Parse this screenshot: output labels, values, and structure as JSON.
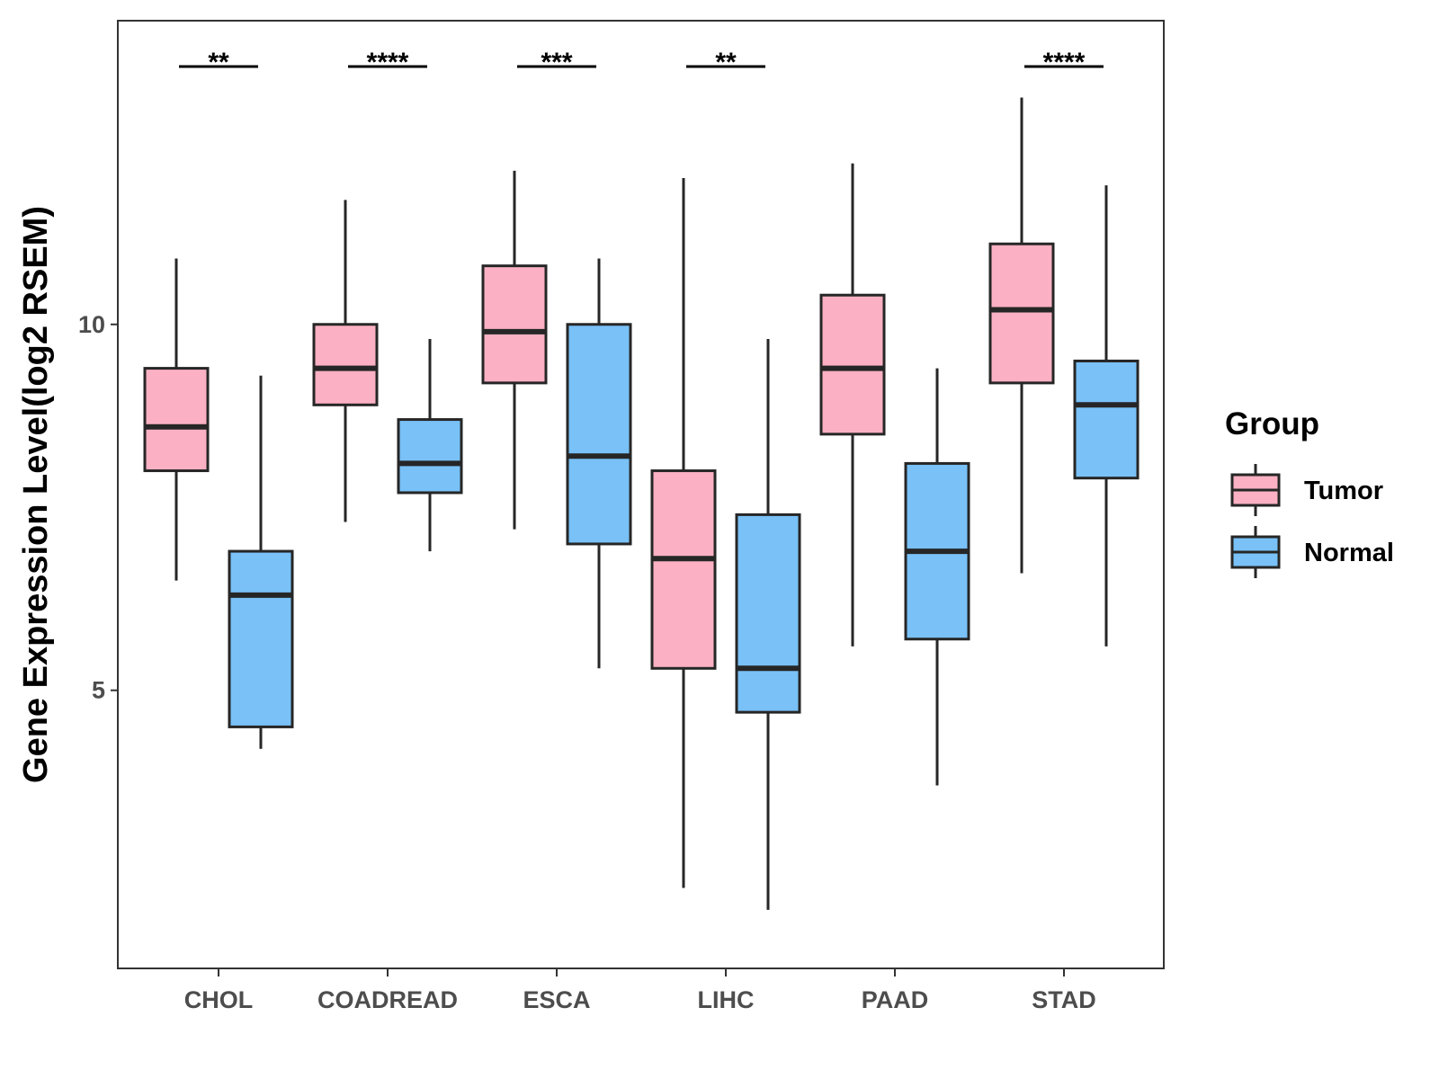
{
  "chart_data": {
    "type": "boxplot",
    "title": "",
    "xlabel": "",
    "ylabel": "Gene Expression Level(log2 RSEM)",
    "ylim": [
      1.2,
      14.15
    ],
    "yticks": [
      5,
      10
    ],
    "categories": [
      "CHOL",
      "COADREAD",
      "ESCA",
      "LIHC",
      "PAAD",
      "STAD"
    ],
    "legend": {
      "title": "Group",
      "position": "right",
      "entries": [
        {
          "name": "Tumor",
          "color": "#FBB1C3"
        },
        {
          "name": "Normal",
          "color": "#79C1F7"
        }
      ]
    },
    "series": [
      {
        "name": "Tumor",
        "color": "#FBB1C3",
        "boxes": [
          {
            "category": "CHOL",
            "min": 6.5,
            "q1": 8.0,
            "median": 8.6,
            "q3": 9.4,
            "max": 10.9
          },
          {
            "category": "COADREAD",
            "min": 7.3,
            "q1": 8.9,
            "median": 9.4,
            "q3": 10.0,
            "max": 11.7
          },
          {
            "category": "ESCA",
            "min": 7.2,
            "q1": 9.2,
            "median": 9.9,
            "q3": 10.8,
            "max": 12.1
          },
          {
            "category": "LIHC",
            "min": 2.3,
            "q1": 5.3,
            "median": 6.8,
            "q3": 8.0,
            "max": 12.0
          },
          {
            "category": "PAAD",
            "min": 5.6,
            "q1": 8.5,
            "median": 9.4,
            "q3": 10.4,
            "max": 12.2
          },
          {
            "category": "STAD",
            "min": 6.6,
            "q1": 9.2,
            "median": 10.2,
            "q3": 11.1,
            "max": 13.1
          }
        ]
      },
      {
        "name": "Normal",
        "color": "#79C1F7",
        "boxes": [
          {
            "category": "CHOL",
            "min": 4.2,
            "q1": 4.5,
            "median": 6.3,
            "q3": 6.9,
            "max": 9.3
          },
          {
            "category": "COADREAD",
            "min": 6.9,
            "q1": 7.7,
            "median": 8.1,
            "q3": 8.7,
            "max": 9.8
          },
          {
            "category": "ESCA",
            "min": 5.3,
            "q1": 7.0,
            "median": 8.2,
            "q3": 10.0,
            "max": 10.9
          },
          {
            "category": "LIHC",
            "min": 2.0,
            "q1": 4.7,
            "median": 5.3,
            "q3": 7.4,
            "max": 9.8
          },
          {
            "category": "PAAD",
            "min": 3.7,
            "q1": 5.7,
            "median": 6.9,
            "q3": 8.1,
            "max": 9.4
          },
          {
            "category": "STAD",
            "min": 5.6,
            "q1": 7.9,
            "median": 8.9,
            "q3": 9.5,
            "max": 11.9
          }
        ]
      }
    ],
    "significance": [
      {
        "category": "CHOL",
        "label": "**"
      },
      {
        "category": "COADREAD",
        "label": "****"
      },
      {
        "category": "ESCA",
        "label": "***"
      },
      {
        "category": "LIHC",
        "label": "**"
      },
      {
        "category": "STAD",
        "label": "****"
      }
    ]
  }
}
